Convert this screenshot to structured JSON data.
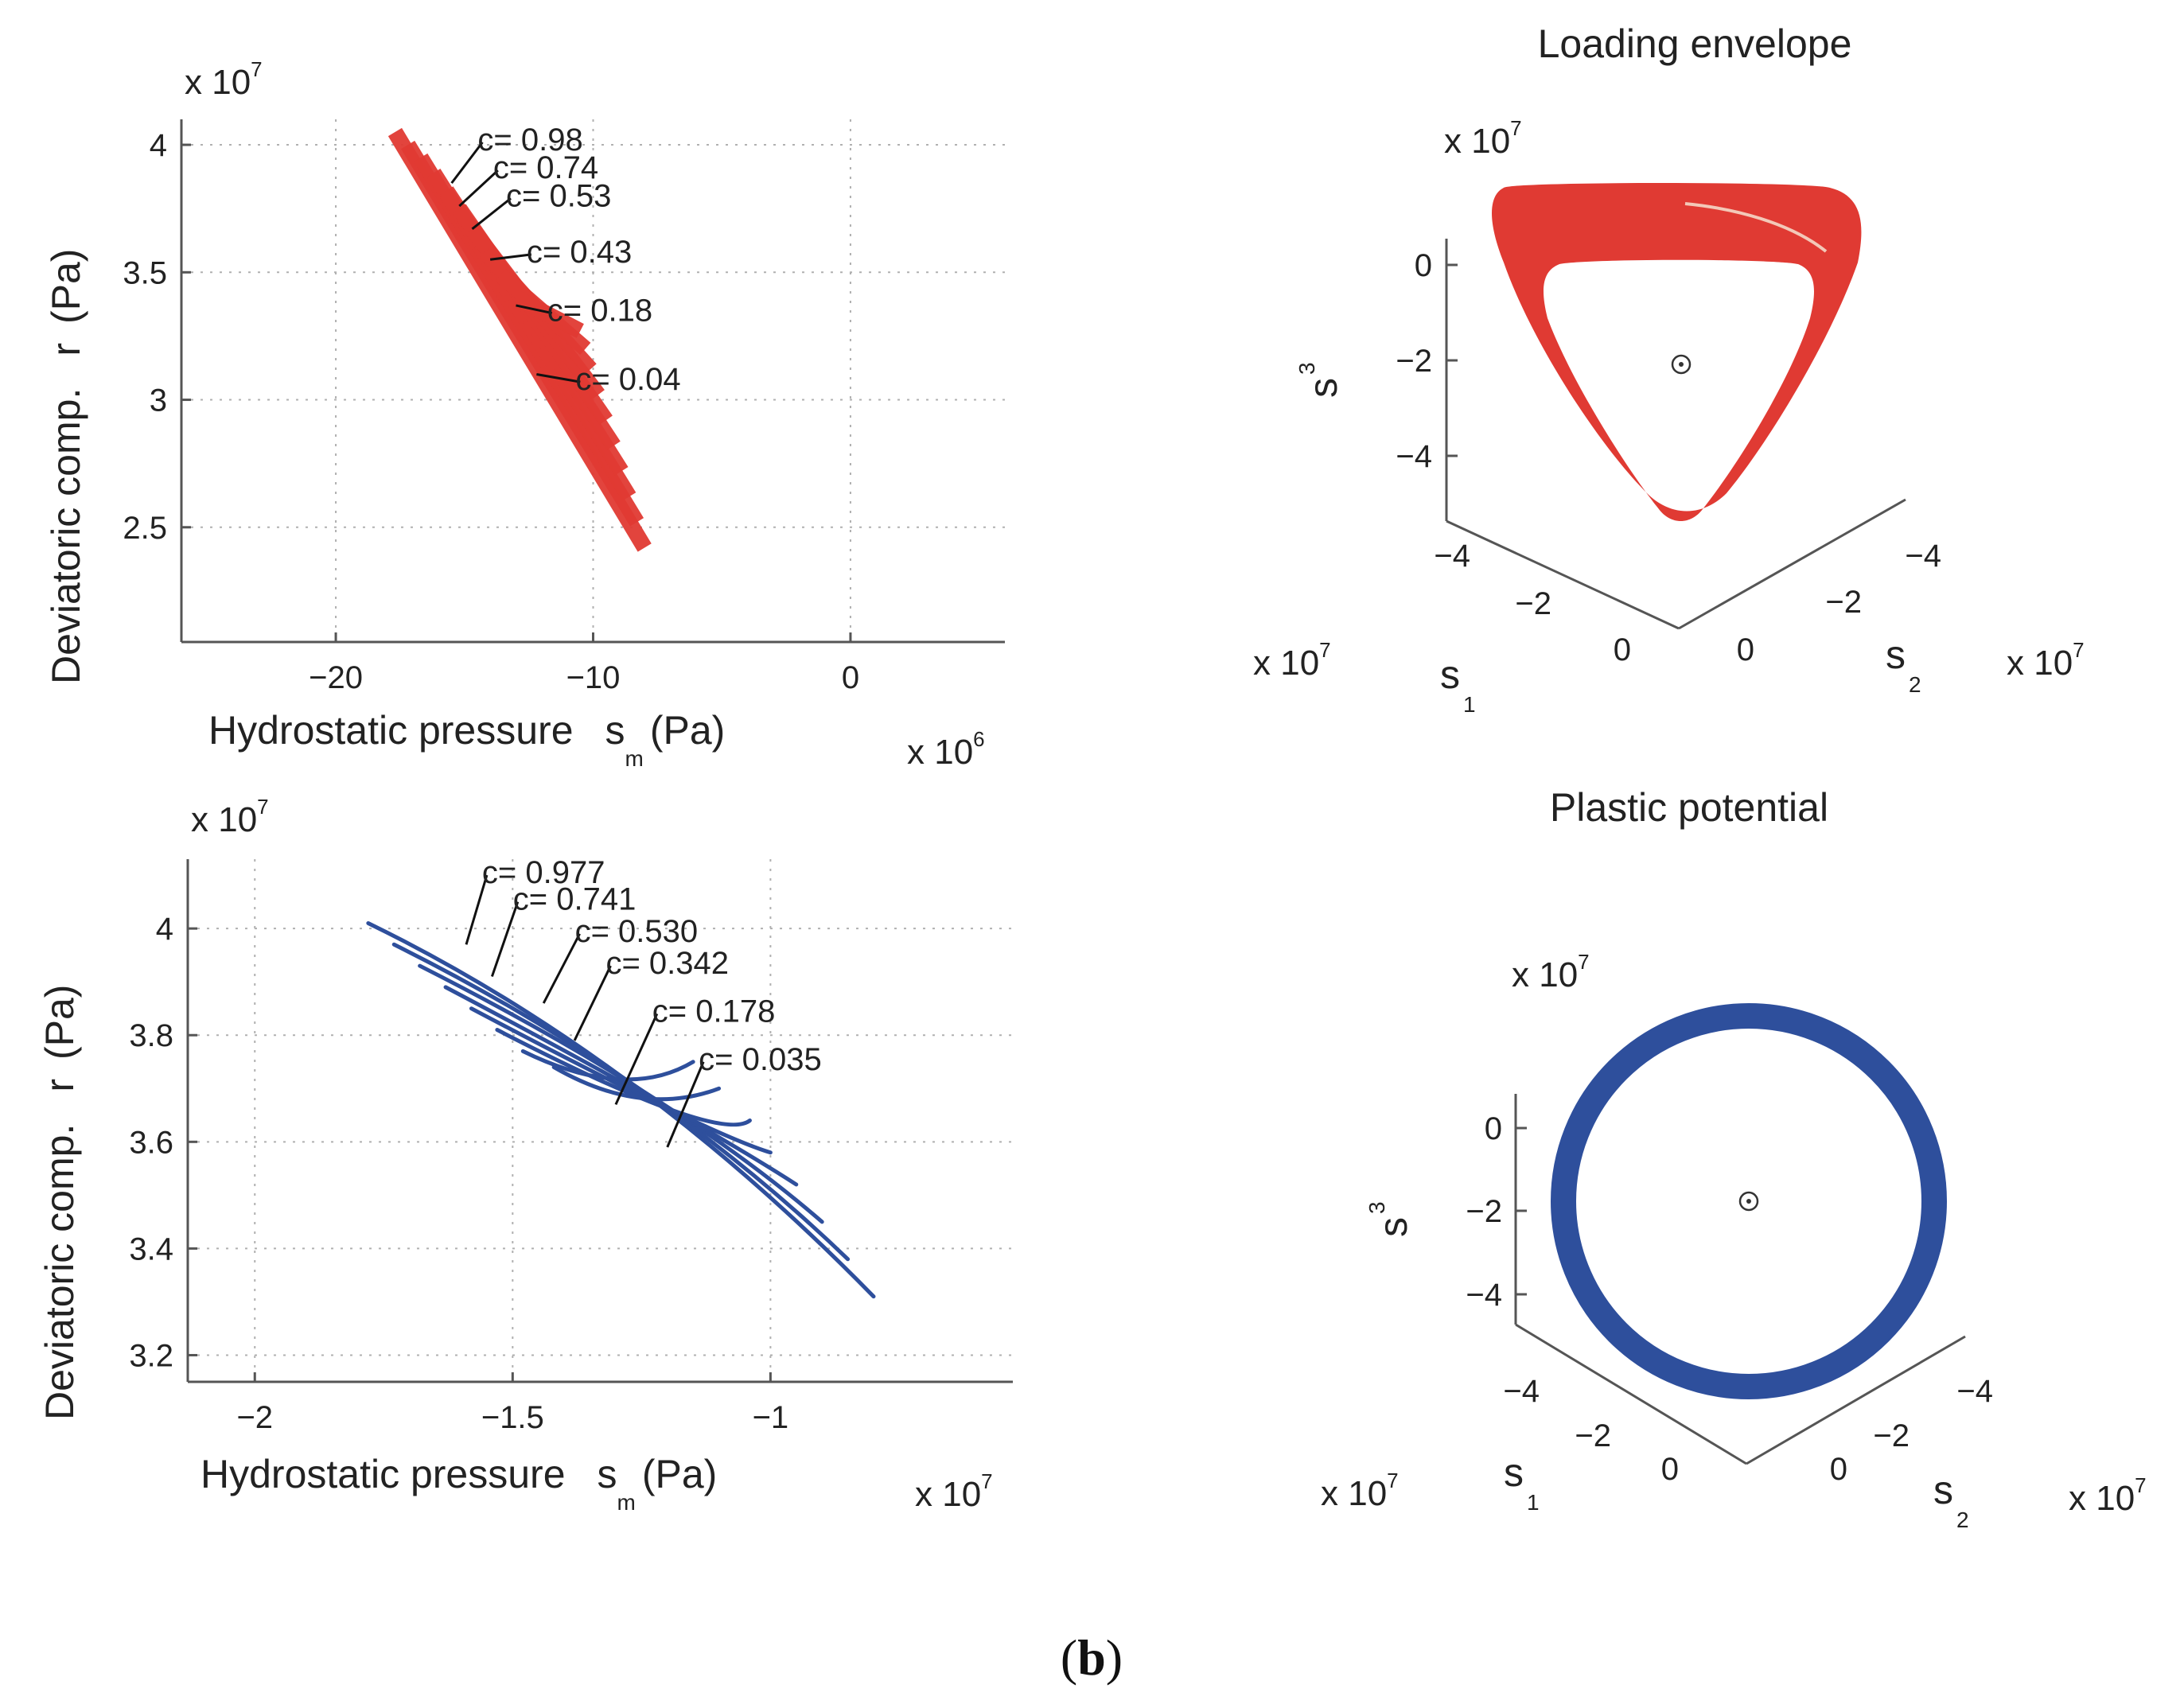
{
  "caption": {
    "label": "b",
    "left_paren": "(",
    "right_paren": ")"
  },
  "colors": {
    "red_series": "#e03a33",
    "blue_series": "#2e4f9c",
    "axis": "#555555"
  },
  "chart_data": [
    {
      "id": "top-left",
      "type": "line",
      "xlabel_main": "Hydrostatic pressure",
      "xlabel_sym": "s",
      "xlabel_sub": "m",
      "xlabel_unit": "(Pa)",
      "ylabel_main": "Deviatoric comp.",
      "ylabel_sym": "r",
      "ylabel_unit": "(Pa)",
      "x_exp_base": "x 10",
      "x_exp_pow": "6",
      "y_exp_base": "x 10",
      "y_exp_pow": "7",
      "xlim": [
        -26,
        6
      ],
      "ylim": [
        2.05,
        4.1
      ],
      "xticks": [
        -20,
        -10,
        0
      ],
      "xtick_labels": [
        "−20",
        "−10",
        "0"
      ],
      "yticks": [
        2.5,
        3,
        3.5,
        4
      ],
      "ytick_labels": [
        "2.5",
        "3",
        "3.5",
        "4"
      ],
      "series": [
        {
          "x": [
            -17.7,
            -8.0
          ],
          "y": [
            4.05,
            2.42
          ]
        },
        {
          "x": [
            -17.2,
            -8.3
          ],
          "y": [
            4.0,
            2.52
          ]
        },
        {
          "x": [
            -16.7,
            -8.6
          ],
          "y": [
            3.95,
            2.62
          ]
        },
        {
          "x": [
            -16.2,
            -8.9
          ],
          "y": [
            3.89,
            2.72
          ]
        },
        {
          "x": [
            -15.7,
            -9.2
          ],
          "y": [
            3.82,
            2.82
          ]
        },
        {
          "x": [
            -15.2,
            -9.5
          ],
          "y": [
            3.75,
            2.92
          ]
        },
        {
          "x": [
            -14.7,
            -9.8
          ],
          "y": [
            3.67,
            3.02
          ]
        },
        {
          "x": [
            -14.2,
            -10.1
          ],
          "y": [
            3.58,
            3.12
          ]
        },
        {
          "x": [
            -13.6,
            -10.3
          ],
          "y": [
            3.49,
            3.2
          ]
        },
        {
          "x": [
            -13.0,
            -10.5
          ],
          "y": [
            3.4,
            3.27
          ]
        }
      ],
      "annotations": [
        {
          "text": "c= 0.98",
          "x": -15.5,
          "y": 3.85,
          "lx": -14.3,
          "ly": 4.01
        },
        {
          "text": "c= 0.74",
          "x": -15.2,
          "y": 3.76,
          "lx": -13.7,
          "ly": 3.9
        },
        {
          "text": "c= 0.53",
          "x": -14.7,
          "y": 3.67,
          "lx": -13.2,
          "ly": 3.79
        },
        {
          "text": "c= 0.43",
          "x": -14.0,
          "y": 3.55,
          "lx": -12.4,
          "ly": 3.57
        },
        {
          "text": "c= 0.18",
          "x": -13.0,
          "y": 3.37,
          "lx": -11.6,
          "ly": 3.34
        },
        {
          "text": "c= 0.04",
          "x": -12.2,
          "y": 3.1,
          "lx": -10.5,
          "ly": 3.07
        }
      ]
    },
    {
      "id": "bottom-left",
      "type": "line",
      "xlabel_main": "Hydrostatic pressure",
      "xlabel_sym": "s",
      "xlabel_sub": "m",
      "xlabel_unit": "(Pa)",
      "ylabel_main": "Deviatoric comp.",
      "ylabel_sym": "r",
      "ylabel_unit": "(Pa)",
      "x_exp_base": "x 10",
      "x_exp_pow": "7",
      "y_exp_base": "x 10",
      "y_exp_pow": "7",
      "xlim": [
        -2.13,
        -0.53
      ],
      "ylim": [
        3.15,
        4.13
      ],
      "xticks": [
        -2,
        -1.5,
        -1
      ],
      "xtick_labels": [
        "−2",
        "−1.5",
        "−1"
      ],
      "yticks": [
        3.2,
        3.4,
        3.6,
        3.8,
        4.0
      ],
      "ytick_labels": [
        "3.2",
        "3.4",
        "3.6",
        "3.8",
        "4"
      ],
      "series": [
        {
          "x": [
            -1.78,
            -1.26,
            -0.8
          ],
          "y": [
            4.01,
            3.75,
            3.31
          ]
        },
        {
          "x": [
            -1.73,
            -1.22,
            -0.85
          ],
          "y": [
            3.97,
            3.71,
            3.38
          ]
        },
        {
          "x": [
            -1.68,
            -1.18,
            -0.9
          ],
          "y": [
            3.93,
            3.67,
            3.45
          ]
        },
        {
          "x": [
            -1.63,
            -1.15,
            -0.95
          ],
          "y": [
            3.89,
            3.63,
            3.52
          ]
        },
        {
          "x": [
            -1.58,
            -1.12,
            -1.0
          ],
          "y": [
            3.85,
            3.6,
            3.58
          ]
        },
        {
          "x": [
            -1.53,
            -1.1,
            -1.04
          ],
          "y": [
            3.81,
            3.58,
            3.64
          ]
        },
        {
          "x": [
            -1.48,
            -1.28,
            -1.15
          ],
          "y": [
            3.77,
            3.66,
            3.75
          ]
        },
        {
          "x": [
            -1.42,
            -1.25,
            -1.1
          ],
          "y": [
            3.74,
            3.63,
            3.7
          ]
        }
      ],
      "annotations": [
        {
          "text": "c= 0.977",
          "x": -1.59,
          "y": 3.97,
          "lx": -1.55,
          "ly": 4.1
        },
        {
          "text": "c= 0.741",
          "x": -1.54,
          "y": 3.91,
          "lx": -1.49,
          "ly": 4.05
        },
        {
          "text": "c= 0.530",
          "x": -1.44,
          "y": 3.86,
          "lx": -1.37,
          "ly": 3.99
        },
        {
          "text": "c= 0.342",
          "x": -1.38,
          "y": 3.79,
          "lx": -1.31,
          "ly": 3.93
        },
        {
          "text": "c= 0.178",
          "x": -1.3,
          "y": 3.67,
          "lx": -1.22,
          "ly": 3.84
        },
        {
          "text": "c= 0.035",
          "x": -1.2,
          "y": 3.59,
          "lx": -1.13,
          "ly": 3.75
        }
      ]
    },
    {
      "id": "top-right",
      "type": "line",
      "title": "Loading envelope",
      "exp_base": "x 10",
      "exp_pow": "7",
      "s3_label": "s",
      "s3_sub": "3",
      "s1_label": "s",
      "s1_sub": "1",
      "s2_label": "s",
      "s2_sub": "2",
      "s3_ticks": [
        "0",
        "−2",
        "−4"
      ],
      "s1_ticks": [
        "−4",
        "−2",
        "0"
      ],
      "s2_ticks": [
        "−4",
        "−2",
        "0"
      ],
      "shape": "rounded-triangle"
    },
    {
      "id": "bottom-right",
      "type": "line",
      "title": "Plastic potential",
      "exp_base": "x 10",
      "exp_pow": "7",
      "s3_label": "s",
      "s3_sub": "3",
      "s1_label": "s",
      "s1_sub": "1",
      "s2_label": "s",
      "s2_sub": "2",
      "s3_ticks": [
        "0",
        "−2",
        "−4"
      ],
      "s1_ticks": [
        "−4",
        "−2",
        "0"
      ],
      "s2_ticks": [
        "−4",
        "−2",
        "0"
      ],
      "shape": "circle"
    }
  ]
}
